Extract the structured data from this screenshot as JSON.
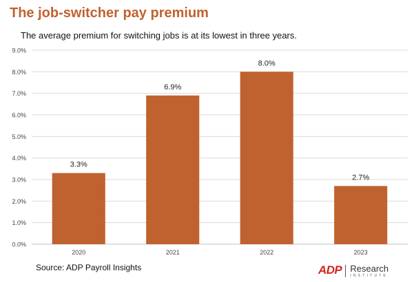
{
  "header": {
    "title": "The job-switcher pay premium",
    "subtitle": "The average premium for switching jobs is at its lowest in three years."
  },
  "footer": {
    "source": "Source: ADP Payroll Insights",
    "logo_mark": "ADP",
    "logo_name": "Research",
    "logo_sub": "INSTITUTE"
  },
  "colors": {
    "bar": "#c0622f",
    "title": "#c0622f",
    "grid": "#d9d9d9",
    "tick_text": "#444444",
    "logo_red": "#d0271d"
  },
  "chart_data": {
    "type": "bar",
    "title": "The job-switcher pay premium",
    "subtitle": "The average premium for switching jobs is at its lowest in three years.",
    "categories": [
      "2020",
      "2021",
      "2022",
      "2023"
    ],
    "values": [
      3.3,
      6.9,
      8.0,
      2.7
    ],
    "data_labels": [
      "3.3%",
      "6.9%",
      "8.0%",
      "2.7%"
    ],
    "xlabel": "",
    "ylabel": "",
    "ylim": [
      0,
      9
    ],
    "yticks": [
      "0.0%",
      "1.0%",
      "2.0%",
      "3.0%",
      "4.0%",
      "5.0%",
      "6.0%",
      "7.0%",
      "8.0%",
      "9.0%"
    ],
    "grid": true,
    "legend": "none"
  }
}
